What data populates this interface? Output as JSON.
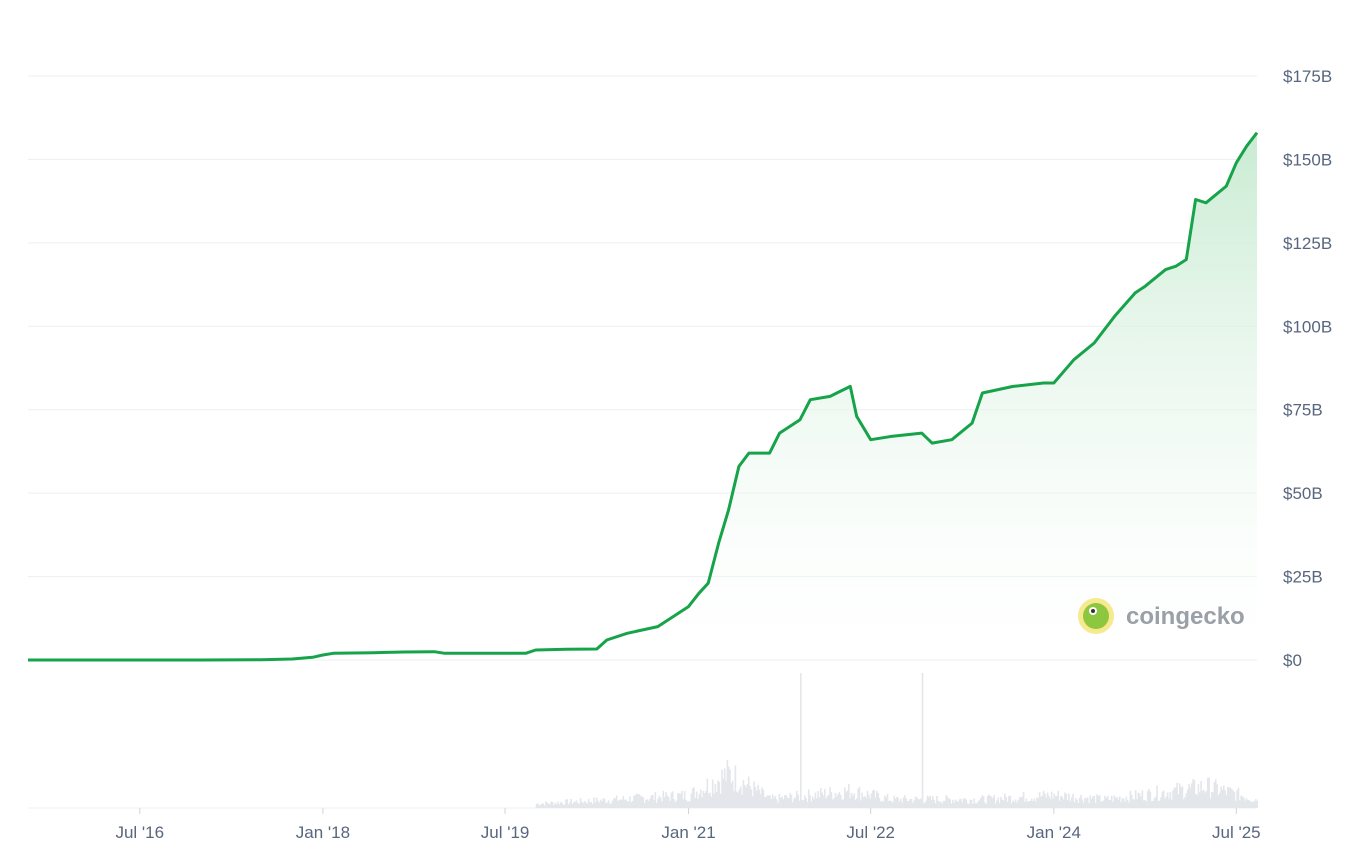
{
  "chart_data": {
    "type": "area",
    "series": [
      {
        "values": [
          [
            "2015-08-01",
            0
          ],
          [
            "2016-01-01",
            0
          ],
          [
            "2016-07-01",
            0
          ],
          [
            "2017-01-01",
            0
          ],
          [
            "2017-07-01",
            0.1
          ],
          [
            "2017-10-01",
            0.3
          ],
          [
            "2017-12-01",
            0.8
          ],
          [
            "2018-01-01",
            1.5
          ],
          [
            "2018-02-01",
            2.0
          ],
          [
            "2018-06-01",
            2.2
          ],
          [
            "2018-09-01",
            2.4
          ],
          [
            "2018-12-01",
            2.5
          ],
          [
            "2019-01-01",
            2.0
          ],
          [
            "2019-06-01",
            2.0
          ],
          [
            "2019-09-01",
            2.0
          ],
          [
            "2019-10-01",
            3.0
          ],
          [
            "2020-01-01",
            3.2
          ],
          [
            "2020-04-01",
            3.3
          ],
          [
            "2020-05-01",
            6.0
          ],
          [
            "2020-07-01",
            8.0
          ],
          [
            "2020-10-01",
            10.0
          ],
          [
            "2021-01-01",
            16.0
          ],
          [
            "2021-02-01",
            20.0
          ],
          [
            "2021-03-01",
            23.0
          ],
          [
            "2021-04-01",
            35.0
          ],
          [
            "2021-05-01",
            45.0
          ],
          [
            "2021-06-01",
            58.0
          ],
          [
            "2021-07-01",
            62.0
          ],
          [
            "2021-09-01",
            62.0
          ],
          [
            "2021-10-01",
            68.0
          ],
          [
            "2021-12-01",
            72.0
          ],
          [
            "2022-01-01",
            78.0
          ],
          [
            "2022-03-01",
            79.0
          ],
          [
            "2022-05-01",
            82.0
          ],
          [
            "2022-05-20",
            73.0
          ],
          [
            "2022-07-01",
            66.0
          ],
          [
            "2022-09-01",
            67.0
          ],
          [
            "2022-12-01",
            68.0
          ],
          [
            "2023-01-01",
            65.0
          ],
          [
            "2023-03-01",
            66.0
          ],
          [
            "2023-05-01",
            71.0
          ],
          [
            "2023-06-01",
            80.0
          ],
          [
            "2023-09-01",
            82.0
          ],
          [
            "2023-12-01",
            83.0
          ],
          [
            "2024-01-01",
            83.0
          ],
          [
            "2024-03-01",
            90.0
          ],
          [
            "2024-05-01",
            95.0
          ],
          [
            "2024-07-01",
            103.0
          ],
          [
            "2024-09-01",
            110.0
          ],
          [
            "2024-10-01",
            112.0
          ],
          [
            "2024-12-01",
            117.0
          ],
          [
            "2025-01-01",
            118.0
          ],
          [
            "2025-02-01",
            120.0
          ],
          [
            "2025-03-01",
            138.0
          ],
          [
            "2025-04-01",
            137.0
          ],
          [
            "2025-06-01",
            142.0
          ],
          [
            "2025-07-01",
            149.0
          ],
          [
            "2025-08-01",
            154.0
          ],
          [
            "2025-09-01",
            158.0
          ]
        ]
      }
    ],
    "volume": [
      [
        "2019-10-01",
        1
      ],
      [
        "2020-06-01",
        2
      ],
      [
        "2021-01-01",
        3
      ],
      [
        "2021-05-01",
        8
      ],
      [
        "2021-09-01",
        2
      ],
      [
        "2022-01-01",
        3
      ],
      [
        "2022-05-01",
        4
      ],
      [
        "2022-09-01",
        2
      ],
      [
        "2023-01-01",
        2
      ],
      [
        "2023-06-01",
        2
      ],
      [
        "2024-01-01",
        3
      ],
      [
        "2024-06-01",
        2
      ],
      [
        "2025-01-01",
        4
      ],
      [
        "2025-04-01",
        5
      ],
      [
        "2025-09-01",
        2
      ]
    ],
    "volume_spikes": [
      "2021-12-01",
      "2022-12-01"
    ],
    "y_axis": {
      "range": [
        0,
        175
      ],
      "ticks": [
        0,
        25,
        50,
        75,
        100,
        125,
        150,
        175
      ],
      "tick_labels": [
        "$0",
        "$25B",
        "$50B",
        "$75B",
        "$100B",
        "$125B",
        "$150B",
        "$175B"
      ],
      "position": "right"
    },
    "x_axis": {
      "range": [
        "2015-08-01",
        "2025-09-01"
      ],
      "ticks": [
        "2016-07-01",
        "2018-01-01",
        "2019-07-01",
        "2021-01-01",
        "2022-07-01",
        "2024-01-01",
        "2025-07-01"
      ],
      "tick_labels": [
        "Jul '16",
        "Jan '18",
        "Jul '19",
        "Jan '21",
        "Jul '22",
        "Jan '24",
        "Jul '25"
      ]
    },
    "grid": true,
    "legend": "none",
    "colors": {
      "line": "#16a34a",
      "fill_top": "#c6ead0",
      "grid": "#eceff3",
      "text": "#58667e",
      "volume": "#e3e6ea"
    }
  },
  "watermark": {
    "text": "coingecko",
    "placement": "bottom-right"
  }
}
